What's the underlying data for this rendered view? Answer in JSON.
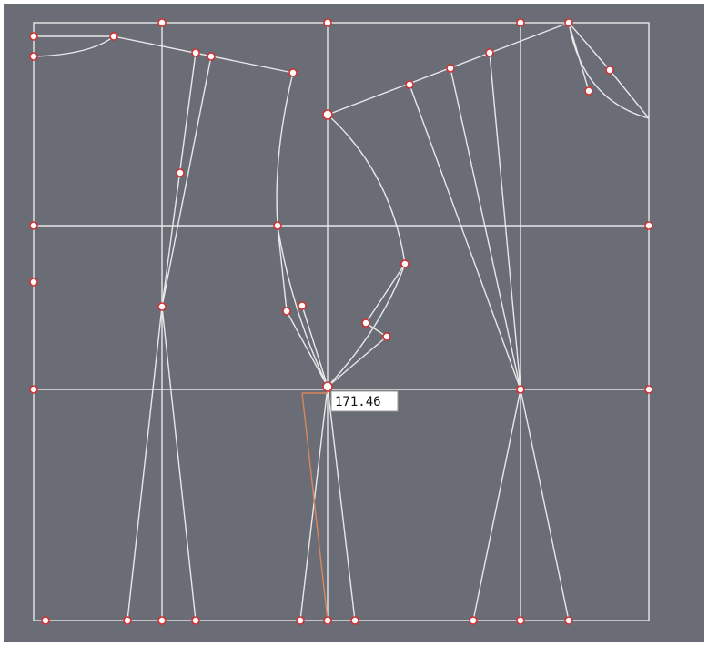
{
  "measurement_label": "171.46"
}
